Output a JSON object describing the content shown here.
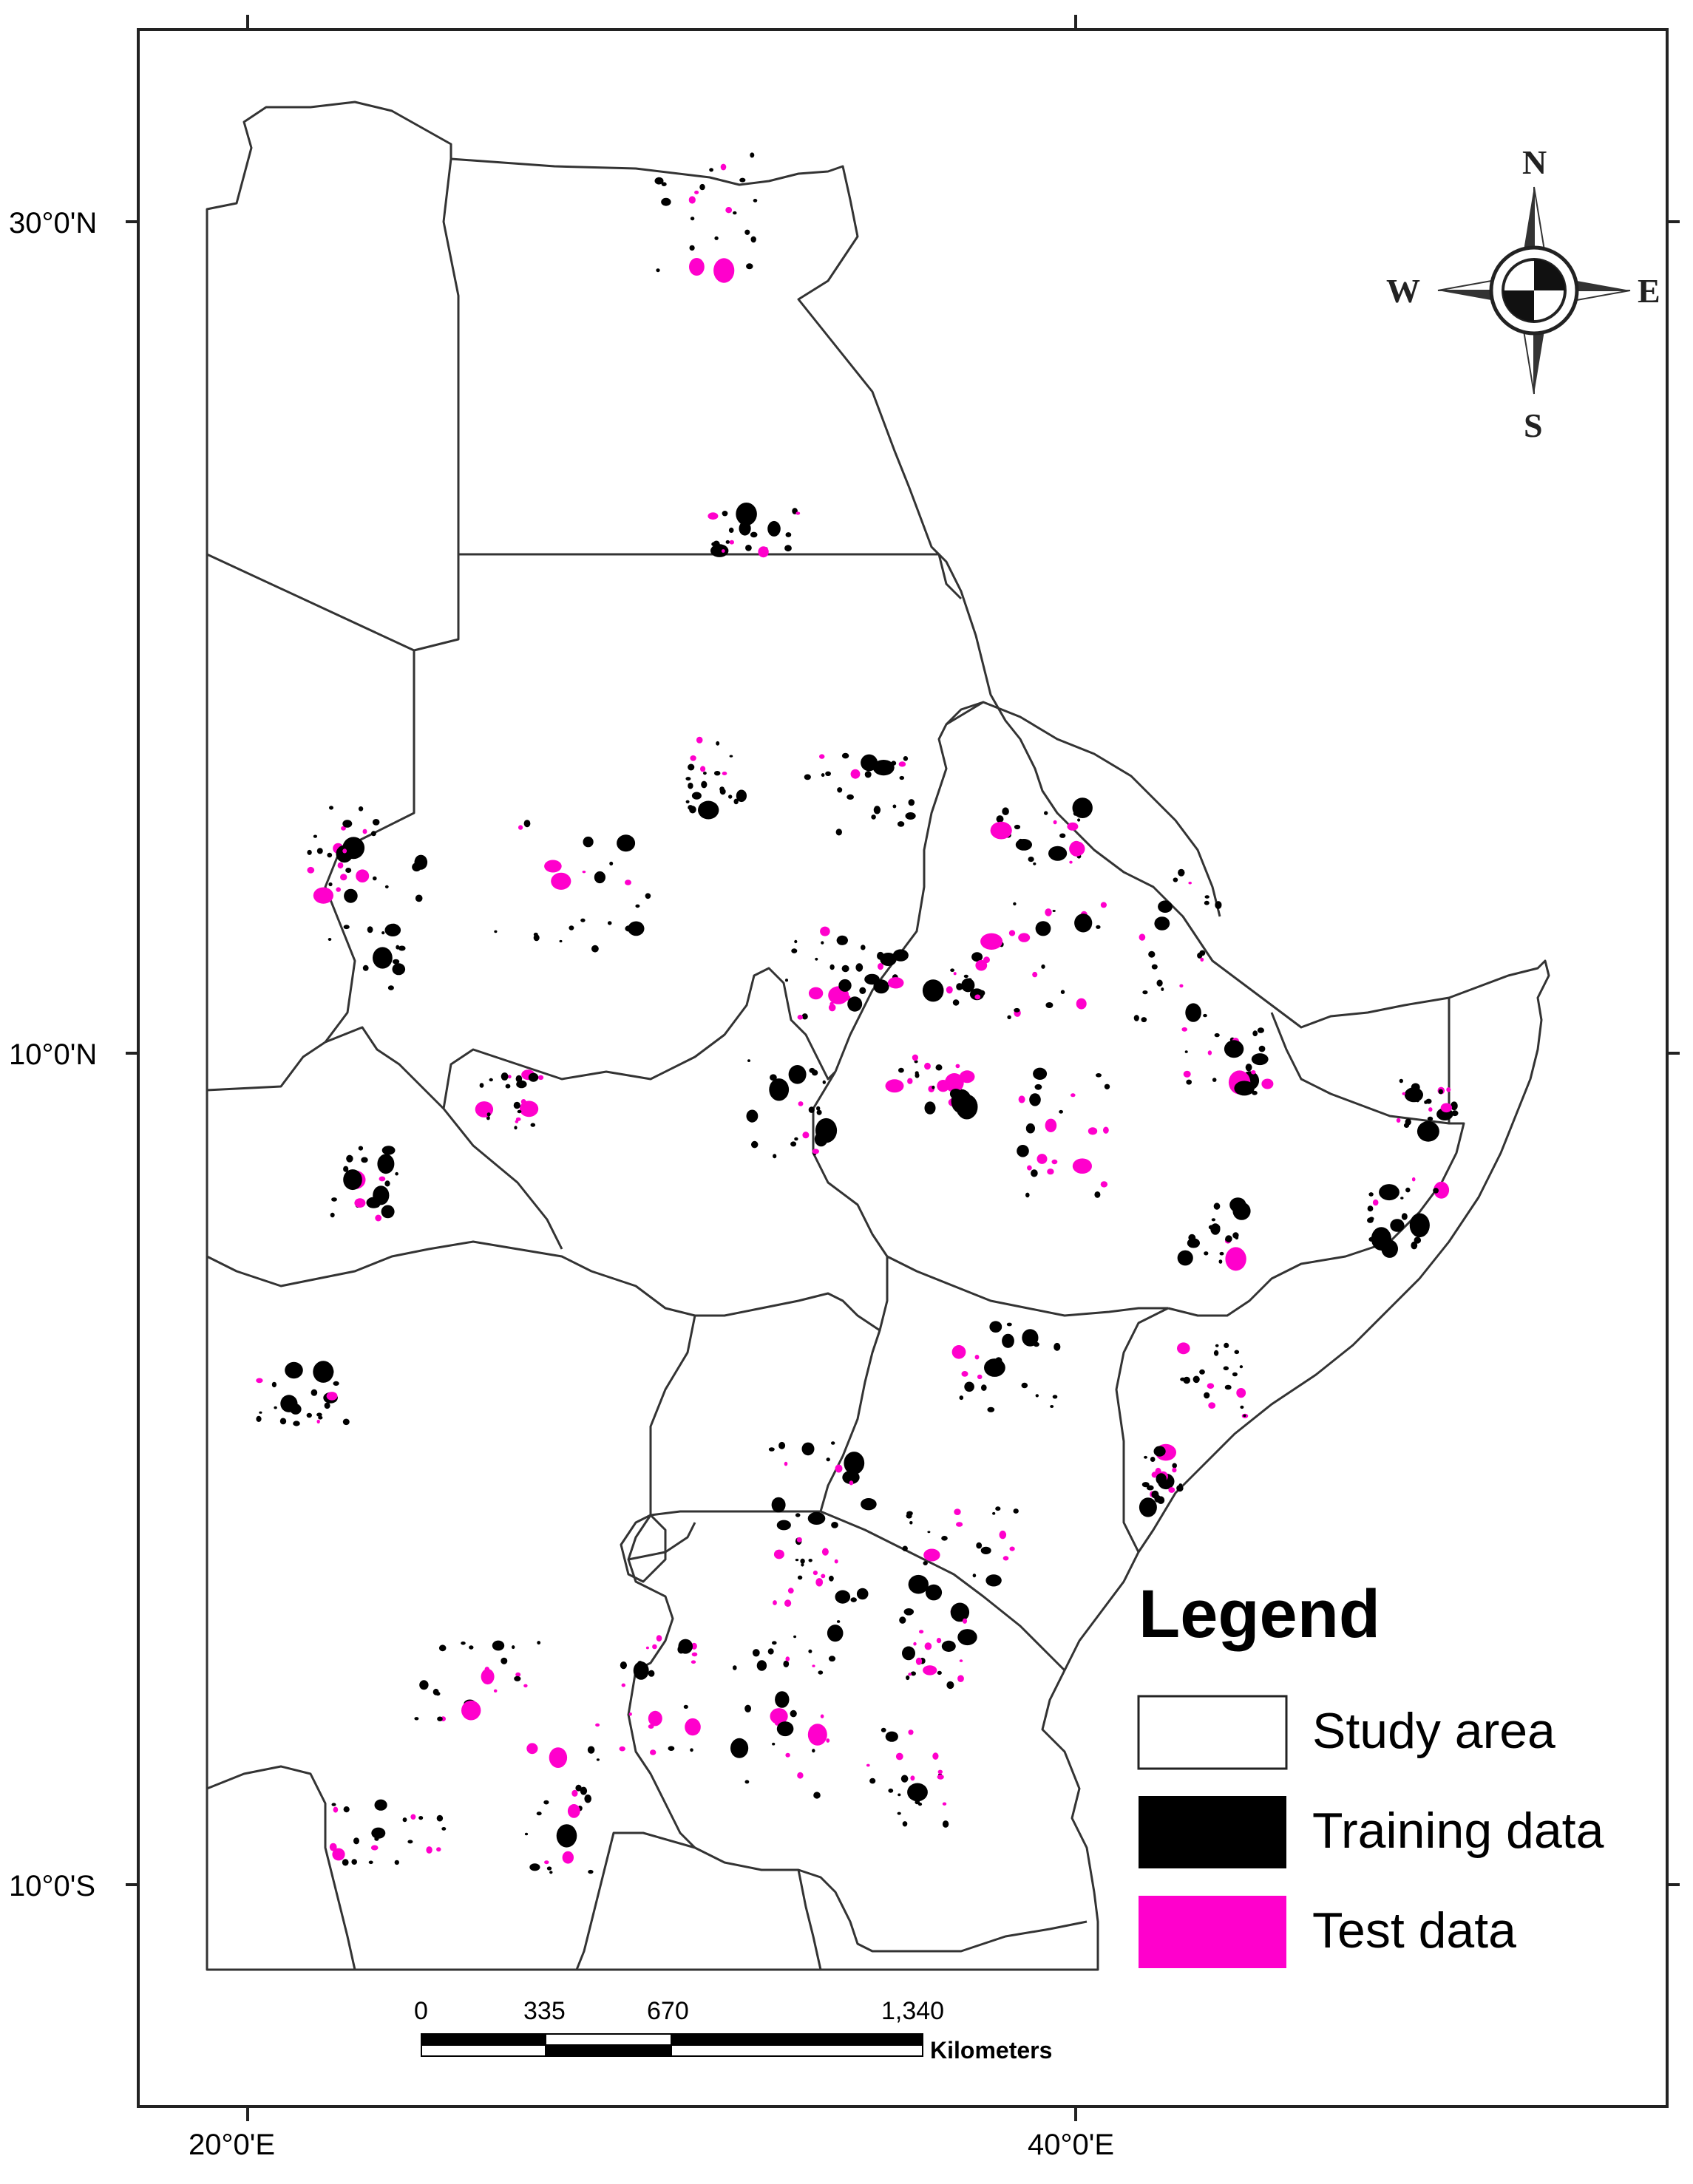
{
  "graticule": {
    "top_labels": [
      "20°0'E",
      "40°0'E"
    ],
    "left_labels": [
      "30°0'N",
      "10°0'N",
      "10°0'S"
    ],
    "bottom_labels": [
      "20°0'E",
      "40°0'E"
    ]
  },
  "compass": {
    "north": "N",
    "south": "S",
    "east": "E",
    "west": "W"
  },
  "legend": {
    "title": "Legend",
    "items": [
      {
        "label": "Study area",
        "color": "#ffffff"
      },
      {
        "label": "Training data",
        "color": "#000000"
      },
      {
        "label": "Test data",
        "color": "#ff00cc"
      }
    ]
  },
  "scale_bar": {
    "ticks": [
      "0",
      "335",
      "670",
      "1,340"
    ],
    "unit": "Kilometers"
  },
  "colors": {
    "training": "#000000",
    "test": "#ff00cc",
    "border": "#333333"
  }
}
